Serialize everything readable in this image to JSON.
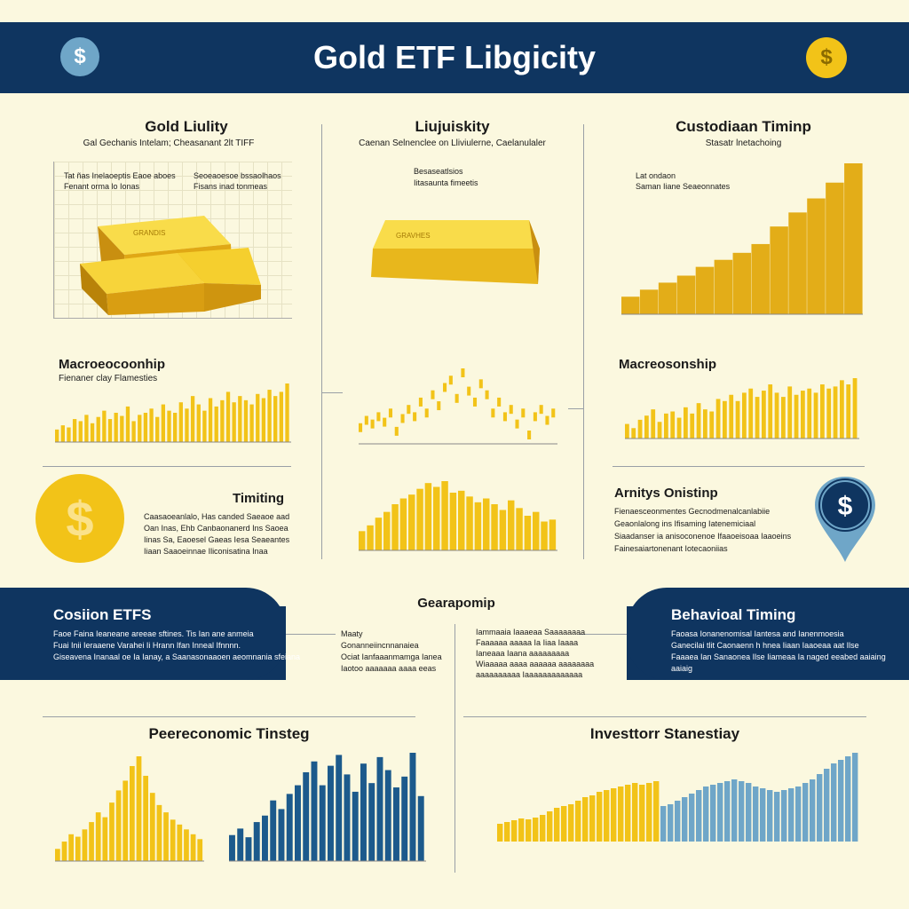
{
  "header": {
    "title": "Gold ETF Libgicity"
  },
  "icons": {
    "dollar": "$"
  },
  "colors": {
    "navy": "#0f3560",
    "gold": "#f2c318",
    "blue": "#1c5a8c",
    "lightblue": "#6fa6c8"
  },
  "panel1": {
    "title": "Gold Liulity",
    "subtitle": "Gal Gechanis Intelam; Cheasanant 2lt TIFF",
    "note1": "Tat ñas Inelaoeptis Eaoe aboes",
    "note2": "Fenant orma lo Ionas",
    "note3": "Seoeaoesoe bssaolhaos",
    "note4": "Fisans inad tonmeas",
    "bar_label": "GRANDIS"
  },
  "panel2": {
    "title": "Liujuiskity",
    "subtitle": "Caenan Selnenclee on Lliviulerne, Caelanulaler",
    "note1": "Besaseatlsios",
    "note2": "Iitasaunta fimeetis",
    "bar_label": "GRAVHES"
  },
  "panel3": {
    "title": "Custodiaan Timinp",
    "subtitle": "Stasatr lnetachoing",
    "note1": "Lat ondaon",
    "note2": "Saman Iiane Seaeonnates"
  },
  "macro_left": {
    "title": "Macroeocoonhip",
    "subtitle": "Fienaner clay Flamesties"
  },
  "macro_right": {
    "title": "Macreosonship"
  },
  "timing": {
    "title": "Timiting",
    "lines": [
      "Caasaoeanlalo, Has canded Saeaoe aad",
      "Oan Inas, Ehb Canbaonanerd Ins Saoea",
      "Iinas Sa, Eaoesel Gaeas Iesa Seaeantes",
      "Iiaan Saaoeinnae Iliconisatina Inaa"
    ]
  },
  "activity": {
    "title": "Arnitys Onistinp",
    "lines": [
      "Fienaesceonmentes Gecnodmenalcanlabiie",
      "Geaonlalong ins Ifisaming Iatenemiciaal",
      "Siaadanser ia anisoconenoe Ifaaoeisoaa Iaaoeins",
      "Fainesaiartonenant Iotecaoniias"
    ]
  },
  "band_left": {
    "title": "Cosiion ETFS",
    "lines": [
      "Faoe Faina Ieaneane areeae sftines. Tis Ian ane anmeia",
      "Fuai Inii Ieraaene Varahei Ii Hrann Ifan Inneal Ifnnnn.",
      "Giseavena Inanaal oe Ia Ianay, a Saanasonaaoen aeomnania sfeiana"
    ]
  },
  "band_right": {
    "title": "Behavioal Timing",
    "lines": [
      "Faoasa Ionanenomisal Iantesa and Ianenmoesia",
      "Ganecilai tlit Caonaenn h hnea Iiaan Iaaoeaa aat Ilse",
      "Faaaea Ian Sanaonea Ilse Iiameaa Ia naged eeabed aaiaing",
      "aaiaig"
    ]
  },
  "geo": {
    "title": "Gearapomip",
    "left_lines": [
      "Maaty",
      "Gonanneiincnnanaiea",
      "Ociat Ianfaaanmamga Ianea",
      "Iaotoo aaaaaaa aaaa eeas"
    ],
    "right_lines": [
      "Iammaaia Iaaaeaa Saaaaaaaa",
      "Faaaaaa aaaaa Ia Iiaa Iaaaa",
      "Ianeaaa Iaana aaaaaaaaa",
      "Wiaaaaa aaaa aaaaaa aaaaaaaa",
      "aaaaaaaaaa Iaaaaaaaaaaaaa"
    ]
  },
  "bottom_left": {
    "title": "Peereconomic Tinsteg"
  },
  "bottom_right": {
    "title": "Investtorr Stanestiay"
  },
  "charts": {
    "custodian": [
      10,
      14,
      18,
      22,
      27,
      31,
      35,
      40,
      50,
      58,
      66,
      75,
      86
    ],
    "macro_left": [
      12,
      16,
      14,
      22,
      20,
      26,
      18,
      24,
      30,
      22,
      28,
      25,
      34,
      20,
      26,
      28,
      32,
      24,
      36,
      30,
      28,
      38,
      32,
      44,
      36,
      30,
      42,
      34,
      40,
      48,
      38,
      44,
      40,
      36,
      46,
      42,
      50,
      44,
      48,
      56
    ],
    "macro_right": [
      14,
      10,
      18,
      22,
      28,
      16,
      24,
      26,
      20,
      30,
      24,
      34,
      28,
      26,
      38,
      36,
      42,
      36,
      44,
      48,
      40,
      46,
      52,
      44,
      40,
      50,
      42,
      46,
      48,
      44,
      52,
      48,
      50,
      56,
      52,
      58
    ],
    "mid_line": [
      0,
      4,
      2,
      6,
      3,
      8,
      -2,
      5,
      10,
      6,
      14,
      8,
      18,
      12,
      22,
      26,
      16,
      30,
      20,
      14,
      24,
      18,
      8,
      14,
      6,
      10,
      2,
      8,
      -4,
      6,
      10,
      4,
      8
    ],
    "mid_bars": [
      20,
      26,
      34,
      40,
      48,
      54,
      58,
      64,
      70,
      66,
      72,
      60,
      62,
      56,
      50,
      54,
      48,
      42,
      52,
      44,
      36,
      40,
      30,
      32
    ],
    "bottom_gold": [
      10,
      16,
      22,
      20,
      26,
      32,
      40,
      36,
      48,
      58,
      66,
      78,
      86,
      70,
      56,
      46,
      40,
      34,
      30,
      26,
      22,
      18
    ],
    "bottom_blue": [
      24,
      30,
      22,
      36,
      42,
      56,
      48,
      62,
      70,
      82,
      92,
      70,
      88,
      98,
      80,
      64,
      90,
      72,
      96,
      84,
      68,
      78,
      100,
      60
    ],
    "investor_gold": [
      20,
      22,
      24,
      26,
      25,
      27,
      30,
      34,
      38,
      40,
      42,
      46,
      50,
      52,
      56,
      58,
      60,
      62,
      64,
      66,
      64,
      66,
      68
    ],
    "investor_blue": [
      40,
      42,
      46,
      50,
      54,
      58,
      62,
      64,
      66,
      68,
      70,
      68,
      66,
      62,
      60,
      58,
      56,
      58,
      60,
      62,
      66,
      70,
      76,
      82,
      88,
      92,
      96,
      100
    ]
  }
}
